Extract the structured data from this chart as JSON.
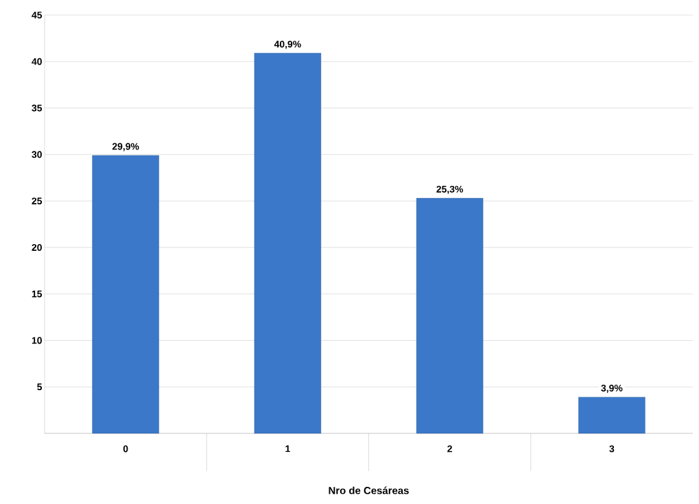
{
  "chart_data": {
    "type": "bar",
    "xlabel": "Nro de Cesáreas",
    "categories": [
      "0",
      "1",
      "2",
      "3"
    ],
    "values": [
      29.9,
      40.9,
      25.3,
      3.9
    ],
    "value_labels": [
      "29,9%",
      "40,9%",
      "25,3%",
      "3,9%"
    ],
    "color": "#3b78c9",
    "ylim": [
      0,
      45
    ],
    "yticks": [
      {
        "value": 0,
        "label": null
      },
      5,
      10,
      15,
      20,
      25,
      30,
      35,
      40,
      45
    ],
    "grid": "y"
  }
}
